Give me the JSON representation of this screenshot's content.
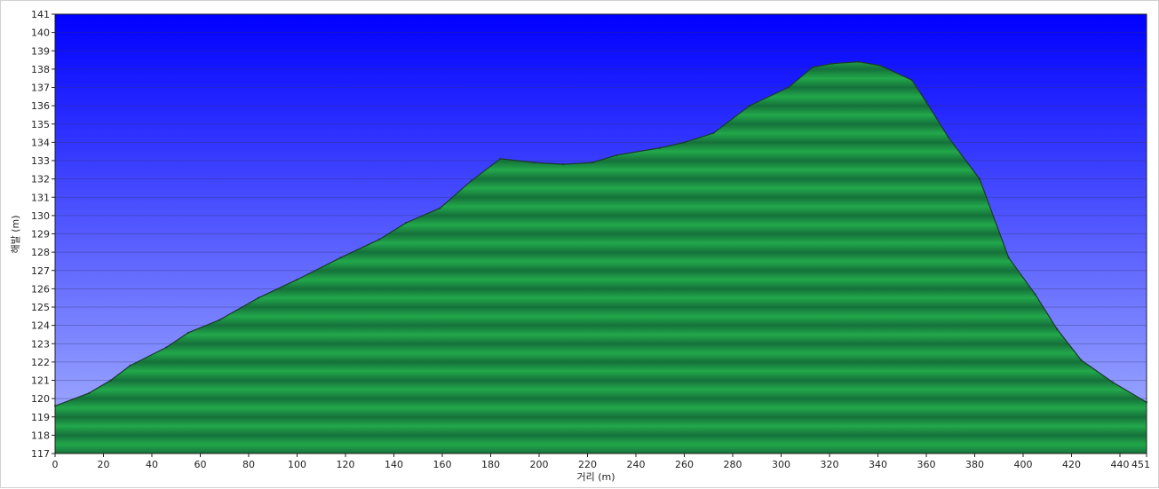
{
  "chart_data": {
    "type": "area",
    "title": "",
    "xlabel": "거리  (m)",
    "ylabel": "해발  (m)",
    "xlim": [
      0,
      451
    ],
    "ylim": [
      117,
      141
    ],
    "x_ticks": [
      0,
      20,
      40,
      60,
      80,
      100,
      120,
      140,
      160,
      180,
      200,
      220,
      240,
      260,
      280,
      300,
      320,
      340,
      360,
      380,
      400,
      420,
      440,
      451
    ],
    "y_ticks": [
      117,
      118,
      119,
      120,
      121,
      122,
      123,
      124,
      125,
      126,
      127,
      128,
      129,
      130,
      131,
      132,
      133,
      134,
      135,
      136,
      137,
      138,
      139,
      140,
      141
    ],
    "grid": true,
    "legend": "none",
    "colors": {
      "sky_top": "#0000ff",
      "sky_bottom": "#aab6ff",
      "terrain_fill": "#1fa347",
      "terrain_band": "#15703a",
      "terrain_outline": "#1a3a2a",
      "grid_line": "#333366"
    },
    "series": [
      {
        "x": [
          0,
          14,
          23,
          31,
          46,
          55,
          68,
          84,
          100,
          118,
          134,
          145,
          159,
          172,
          184,
          198,
          210,
          222,
          232,
          250,
          260,
          272,
          287,
          303,
          313,
          321,
          332,
          341,
          354,
          360,
          369,
          382,
          394,
          405,
          414,
          424,
          437,
          451
        ],
        "y": [
          119.6,
          120.3,
          121.0,
          121.8,
          122.8,
          123.6,
          124.3,
          125.5,
          126.5,
          127.7,
          128.7,
          129.6,
          130.4,
          131.9,
          133.1,
          132.9,
          132.8,
          132.9,
          133.3,
          133.7,
          134.0,
          134.5,
          136.0,
          137.0,
          138.1,
          138.3,
          138.4,
          138.2,
          137.4,
          136.2,
          134.3,
          132.0,
          127.7,
          125.7,
          123.8,
          122.1,
          120.9,
          119.8
        ]
      }
    ]
  }
}
